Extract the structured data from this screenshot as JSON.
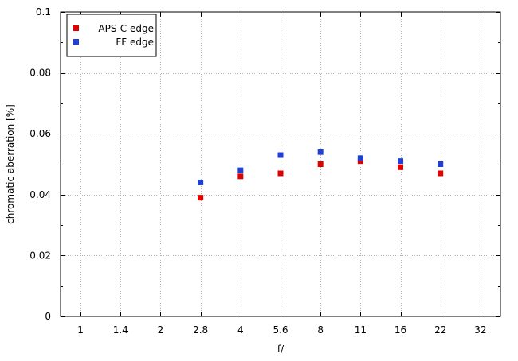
{
  "chart_data": {
    "type": "scatter",
    "xlabel": "f/",
    "ylabel": "chromatic aberration [%]",
    "categories": [
      "1",
      "1.4",
      "2",
      "2.8",
      "4",
      "5.6",
      "8",
      "11",
      "16",
      "22",
      "32"
    ],
    "ylim": [
      0,
      0.1
    ],
    "y_ticks": [
      "0",
      "0.02",
      "0.04",
      "0.06",
      "0.08",
      "0.1"
    ],
    "grid": true,
    "legend_position": "top-left",
    "series": [
      {
        "name": "APS-C edge",
        "color": "#e00000",
        "points": [
          {
            "x": "2.8",
            "y": 0.039
          },
          {
            "x": "4",
            "y": 0.046
          },
          {
            "x": "5.6",
            "y": 0.047
          },
          {
            "x": "8",
            "y": 0.05
          },
          {
            "x": "11",
            "y": 0.051
          },
          {
            "x": "16",
            "y": 0.049
          },
          {
            "x": "22",
            "y": 0.047
          }
        ]
      },
      {
        "name": "FF edge",
        "color": "#1f3fd6",
        "points": [
          {
            "x": "2.8",
            "y": 0.044
          },
          {
            "x": "4",
            "y": 0.048
          },
          {
            "x": "5.6",
            "y": 0.053
          },
          {
            "x": "8",
            "y": 0.054
          },
          {
            "x": "11",
            "y": 0.052
          },
          {
            "x": "16",
            "y": 0.051
          },
          {
            "x": "22",
            "y": 0.05
          }
        ]
      }
    ]
  }
}
